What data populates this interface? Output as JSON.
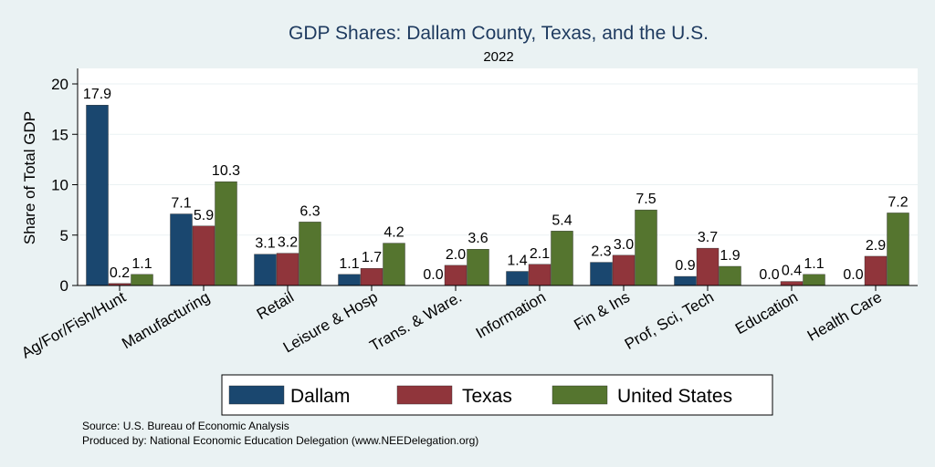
{
  "chart_data": {
    "type": "bar",
    "title": "GDP Shares: Dallam County, Texas, and the U.S.",
    "subtitle": "2022",
    "xlabel": "",
    "ylabel": "Share of Total GDP",
    "ylim": [
      0,
      22
    ],
    "yticks": [
      0,
      5,
      10,
      15,
      20
    ],
    "grid": true,
    "legend_position": "bottom",
    "categories": [
      "Ag/For/Fish/Hunt",
      "Manufacturing",
      "Retail",
      "Leisure & Hosp",
      "Trans. & Ware.",
      "Information",
      "Fin & Ins",
      "Prof, Sci, Tech",
      "Education",
      "Health Care"
    ],
    "series": [
      {
        "name": "Dallam",
        "color": "#1a476f",
        "values": [
          17.9,
          7.1,
          3.1,
          1.1,
          0.0,
          1.4,
          2.3,
          0.9,
          0.0,
          0.0
        ],
        "labels": [
          "17.9",
          "7.1",
          "3.1",
          "1.1",
          "0.0",
          "1.4",
          "2.3",
          "0.9",
          "0.0",
          "0.0"
        ]
      },
      {
        "name": "Texas",
        "color": "#90353b",
        "values": [
          0.2,
          5.9,
          3.2,
          1.7,
          2.0,
          2.1,
          3.0,
          3.7,
          0.4,
          2.9
        ],
        "labels": [
          "0.2",
          "5.9",
          "3.2",
          "1.7",
          "2.0",
          "2.1",
          "3.0",
          "3.7",
          "0.4",
          "2.9"
        ]
      },
      {
        "name": "United States",
        "color": "#55752f",
        "values": [
          1.1,
          10.3,
          6.3,
          4.2,
          3.6,
          5.4,
          7.5,
          1.9,
          1.1,
          7.2
        ],
        "labels": [
          "1.1",
          "10.3",
          "6.3",
          "4.2",
          "3.6",
          "5.4",
          "7.5",
          "1.9",
          "1.1",
          "7.2"
        ]
      }
    ]
  },
  "footer": {
    "source": "Source: U.S. Bureau of Economic Analysis",
    "produced_by": "Produced by: National Economic Education Delegation (www.NEEDelegation.org)"
  }
}
